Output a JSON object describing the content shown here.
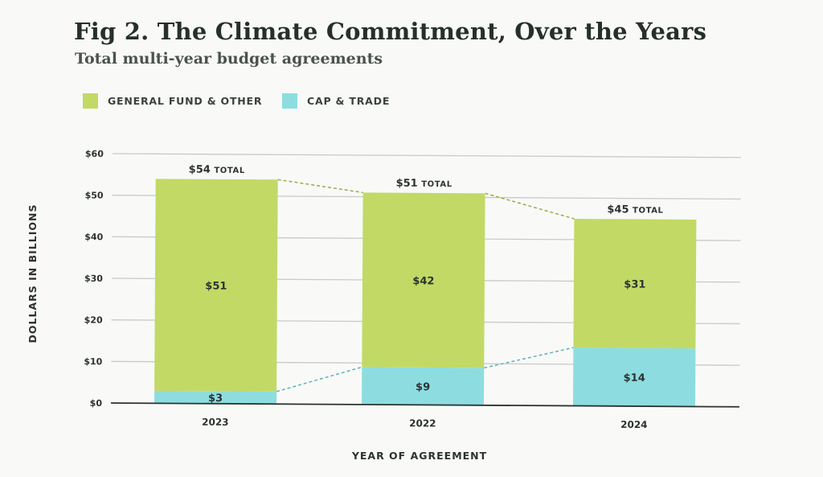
{
  "title": "Fig 2. The Climate Commitment, Over the Years",
  "subtitle": "Total multi-year budget agreements",
  "colors": {
    "general_fund": "#c2d966",
    "cap_trade": "#8ddde0",
    "grid": "#c8cac9",
    "axis": "#2b332f"
  },
  "chart_data": {
    "type": "bar",
    "stacked": true,
    "title": "Fig 2. The Climate Commitment, Over the Years",
    "subtitle": "Total multi-year budget agreements",
    "xlabel": "YEAR OF AGREEMENT",
    "ylabel": "DOLLARS IN BILLIONS",
    "ylim": [
      0,
      60
    ],
    "yticks": [
      "$0",
      "$10",
      "$20",
      "$30",
      "$40",
      "$50",
      "$60"
    ],
    "grid": true,
    "legend_placement": "top-left",
    "categories": [
      "2023",
      "2022",
      "2024"
    ],
    "series": [
      {
        "name": "CAP & TRADE",
        "values": [
          3,
          9,
          14
        ],
        "labels": [
          "$3",
          "$9",
          "$14"
        ]
      },
      {
        "name": "GENERAL FUND & OTHER",
        "values": [
          51,
          42,
          31
        ],
        "labels": [
          "$51",
          "$42",
          "$31"
        ]
      }
    ],
    "totals": [
      54,
      51,
      45
    ],
    "total_labels": [
      "$54",
      "$51",
      "$45"
    ],
    "total_suffix": "TOTAL"
  }
}
